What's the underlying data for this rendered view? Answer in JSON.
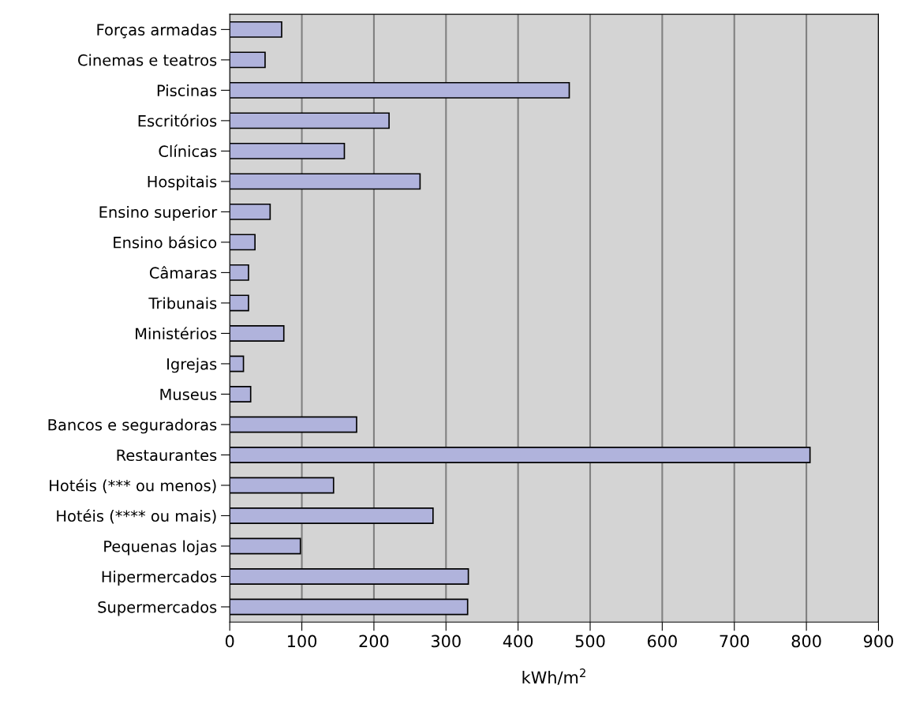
{
  "chart_data": {
    "type": "bar",
    "orientation": "horizontal",
    "xlabel": "kWh/m$^{2}$",
    "categories": [
      "Forças armadas",
      "Cinemas e teatros",
      "Piscinas",
      "Escritórios",
      "Clínicas",
      "Hospitais",
      "Ensino superior",
      "Ensino básico",
      "Câmaras",
      "Tribunais",
      "Ministérios",
      "Igrejas",
      "Museus",
      "Bancos e seguradoras",
      "Restaurantes",
      "Hotéis (*** ou menos)",
      "Hotéis (**** ou mais)",
      "Pequenas lojas",
      "Hipermercados",
      "Supermercados"
    ],
    "values": [
      72,
      49,
      471,
      221,
      159,
      264,
      56,
      35,
      26,
      26,
      75,
      19,
      29,
      176,
      805,
      144,
      282,
      98,
      331,
      330
    ],
    "color": "#b0b3dc",
    "xlim": [
      0,
      900
    ],
    "xticks": [
      0,
      100,
      200,
      300,
      400,
      500,
      600,
      700,
      800,
      900
    ],
    "grid": "x"
  }
}
